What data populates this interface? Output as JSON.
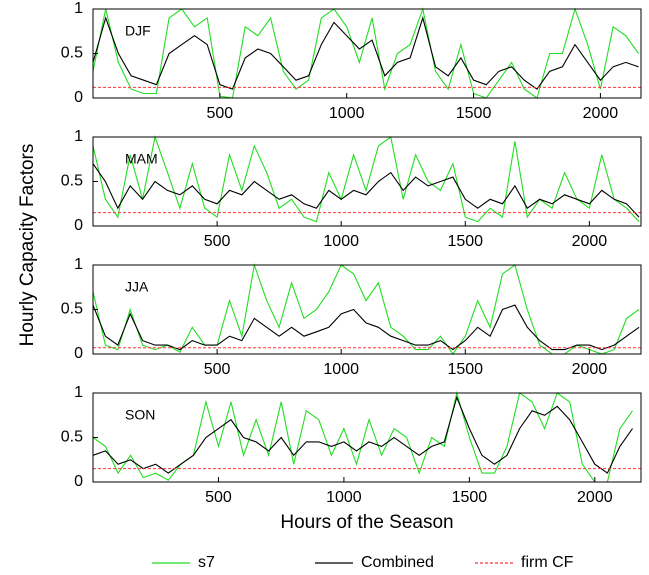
{
  "figure": {
    "xlabel": "Hours of the Season",
    "ylabel": "Hourly Capacity Factors"
  },
  "chart_data": [
    {
      "type": "line",
      "label": "DJF",
      "xlim": [
        0,
        2160
      ],
      "ylim": [
        0,
        1
      ],
      "xticks": [
        500,
        1000,
        1500,
        2000
      ],
      "yticks": [
        0,
        0.5,
        1
      ],
      "x": [
        0,
        50,
        100,
        150,
        200,
        250,
        300,
        350,
        400,
        450,
        500,
        550,
        600,
        650,
        700,
        750,
        800,
        850,
        900,
        950,
        1000,
        1050,
        1100,
        1150,
        1200,
        1250,
        1300,
        1350,
        1400,
        1450,
        1500,
        1550,
        1600,
        1650,
        1700,
        1750,
        1800,
        1850,
        1900,
        1950,
        2000,
        2050,
        2100,
        2150
      ],
      "series": [
        {
          "name": "s7",
          "color": "#22dd22",
          "values": [
            0.3,
            1,
            0.4,
            0.1,
            0.05,
            0.05,
            0.9,
            1,
            0.8,
            0.9,
            0.02,
            0.0,
            0.8,
            0.7,
            0.9,
            0.3,
            0.1,
            0.2,
            0.9,
            1,
            0.8,
            0.4,
            0.9,
            0.1,
            0.5,
            0.6,
            1,
            0.3,
            0.1,
            0.6,
            0.05,
            0.0,
            0.2,
            0.4,
            0.1,
            0.0,
            0.5,
            0.5,
            1,
            0.6,
            0.1,
            0.8,
            0.7,
            0.5
          ]
        },
        {
          "name": "Combined",
          "color": "#000000",
          "values": [
            0.4,
            0.9,
            0.5,
            0.25,
            0.2,
            0.15,
            0.5,
            0.6,
            0.7,
            0.6,
            0.15,
            0.1,
            0.45,
            0.55,
            0.5,
            0.35,
            0.2,
            0.25,
            0.6,
            0.85,
            0.7,
            0.55,
            0.65,
            0.25,
            0.4,
            0.45,
            0.9,
            0.35,
            0.25,
            0.45,
            0.2,
            0.15,
            0.3,
            0.35,
            0.2,
            0.1,
            0.3,
            0.35,
            0.6,
            0.4,
            0.2,
            0.35,
            0.4,
            0.35
          ]
        },
        {
          "name": "firm CF",
          "color": "#ff3333",
          "dashed": true,
          "value": 0.12
        }
      ]
    },
    {
      "type": "line",
      "label": "MAM",
      "xlim": [
        0,
        2208
      ],
      "ylim": [
        0,
        1
      ],
      "xticks": [
        500,
        1000,
        1500,
        2000
      ],
      "yticks": [
        0,
        0.5,
        1
      ],
      "x": [
        0,
        50,
        100,
        150,
        200,
        250,
        300,
        350,
        400,
        450,
        500,
        550,
        600,
        650,
        700,
        750,
        800,
        850,
        900,
        950,
        1000,
        1050,
        1100,
        1150,
        1200,
        1250,
        1300,
        1350,
        1400,
        1450,
        1500,
        1550,
        1600,
        1650,
        1700,
        1750,
        1800,
        1850,
        1900,
        1950,
        2000,
        2050,
        2100,
        2150,
        2200
      ],
      "series": [
        {
          "name": "s7",
          "color": "#22dd22",
          "values": [
            0.9,
            0.3,
            0.1,
            0.8,
            0.3,
            1,
            0.6,
            0.2,
            0.7,
            0.2,
            0.1,
            0.8,
            0.4,
            0.9,
            0.6,
            0.2,
            0.3,
            0.1,
            0.05,
            0.6,
            0.3,
            0.8,
            0.4,
            0.9,
            1,
            0.3,
            0.8,
            0.5,
            0.4,
            0.7,
            0.1,
            0.05,
            0.2,
            0.1,
            0.95,
            0.1,
            0.3,
            0.2,
            0.6,
            0.3,
            0.2,
            0.8,
            0.3,
            0.2,
            0.05
          ]
        },
        {
          "name": "Combined",
          "color": "#000000",
          "values": [
            0.7,
            0.5,
            0.2,
            0.45,
            0.3,
            0.5,
            0.4,
            0.35,
            0.45,
            0.3,
            0.25,
            0.4,
            0.35,
            0.5,
            0.4,
            0.3,
            0.35,
            0.25,
            0.2,
            0.4,
            0.3,
            0.4,
            0.35,
            0.5,
            0.6,
            0.4,
            0.55,
            0.45,
            0.5,
            0.55,
            0.3,
            0.2,
            0.3,
            0.25,
            0.45,
            0.2,
            0.3,
            0.25,
            0.35,
            0.3,
            0.25,
            0.4,
            0.3,
            0.25,
            0.1
          ]
        },
        {
          "name": "firm CF",
          "color": "#ff3333",
          "dashed": true,
          "value": 0.15
        }
      ]
    },
    {
      "type": "line",
      "label": "JJA",
      "xlim": [
        0,
        2208
      ],
      "ylim": [
        0,
        1
      ],
      "xticks": [
        500,
        1000,
        1500,
        2000
      ],
      "yticks": [
        0,
        0.5,
        1
      ],
      "x": [
        0,
        50,
        100,
        150,
        200,
        250,
        300,
        350,
        400,
        450,
        500,
        550,
        600,
        650,
        700,
        750,
        800,
        850,
        900,
        950,
        1000,
        1050,
        1100,
        1150,
        1200,
        1250,
        1300,
        1350,
        1400,
        1450,
        1500,
        1550,
        1600,
        1650,
        1700,
        1750,
        1800,
        1850,
        1900,
        1950,
        2000,
        2050,
        2100,
        2150,
        2200
      ],
      "series": [
        {
          "name": "s7",
          "color": "#22dd22",
          "values": [
            0.7,
            0.1,
            0.05,
            0.5,
            0.1,
            0.05,
            0.1,
            0.02,
            0.3,
            0.1,
            0.1,
            0.6,
            0.2,
            1,
            0.6,
            0.3,
            0.8,
            0.4,
            0.5,
            0.7,
            1,
            0.9,
            0.6,
            0.8,
            0.3,
            0.2,
            0.05,
            0.05,
            0.2,
            0.0,
            0.2,
            0.6,
            0.3,
            0.9,
            1,
            0.5,
            0.1,
            0.0,
            0.0,
            0.1,
            0.05,
            0.0,
            0.05,
            0.4,
            0.5
          ]
        },
        {
          "name": "Combined",
          "color": "#000000",
          "values": [
            0.55,
            0.2,
            0.1,
            0.45,
            0.15,
            0.1,
            0.1,
            0.05,
            0.15,
            0.1,
            0.1,
            0.2,
            0.15,
            0.4,
            0.3,
            0.2,
            0.3,
            0.2,
            0.25,
            0.3,
            0.45,
            0.5,
            0.35,
            0.3,
            0.2,
            0.15,
            0.1,
            0.1,
            0.15,
            0.05,
            0.15,
            0.3,
            0.2,
            0.5,
            0.55,
            0.3,
            0.15,
            0.05,
            0.05,
            0.1,
            0.1,
            0.05,
            0.1,
            0.2,
            0.3
          ]
        },
        {
          "name": "firm CF",
          "color": "#ff3333",
          "dashed": true,
          "value": 0.07
        }
      ]
    },
    {
      "type": "line",
      "label": "SON",
      "xlim": [
        0,
        2184
      ],
      "ylim": [
        0,
        1
      ],
      "xticks": [
        500,
        1000,
        1500,
        2000
      ],
      "yticks": [
        0,
        0.5,
        1
      ],
      "x": [
        0,
        50,
        100,
        150,
        200,
        250,
        300,
        350,
        400,
        450,
        500,
        550,
        600,
        650,
        700,
        750,
        800,
        850,
        900,
        950,
        1000,
        1050,
        1100,
        1150,
        1200,
        1250,
        1300,
        1350,
        1400,
        1450,
        1500,
        1550,
        1600,
        1650,
        1700,
        1750,
        1800,
        1850,
        1900,
        1950,
        2000,
        2050,
        2100,
        2150
      ],
      "series": [
        {
          "name": "s7",
          "color": "#22dd22",
          "values": [
            0.5,
            0.4,
            0.1,
            0.3,
            0.05,
            0.1,
            0.02,
            0.2,
            0.3,
            0.9,
            0.4,
            0.9,
            0.3,
            0.7,
            0.3,
            0.9,
            0.2,
            0.8,
            0.7,
            0.3,
            0.6,
            0.2,
            0.7,
            0.3,
            0.6,
            0.5,
            0.1,
            0.5,
            0.4,
            1,
            0.5,
            0.1,
            0.1,
            0.4,
            1,
            0.9,
            0.6,
            1,
            0.9,
            0.2,
            0.0,
            0.0,
            0.6,
            0.8
          ]
        },
        {
          "name": "Combined",
          "color": "#000000",
          "values": [
            0.3,
            0.35,
            0.2,
            0.25,
            0.15,
            0.2,
            0.1,
            0.2,
            0.3,
            0.5,
            0.6,
            0.7,
            0.5,
            0.45,
            0.35,
            0.5,
            0.3,
            0.45,
            0.45,
            0.4,
            0.45,
            0.35,
            0.45,
            0.4,
            0.5,
            0.4,
            0.3,
            0.4,
            0.45,
            0.95,
            0.6,
            0.3,
            0.2,
            0.3,
            0.6,
            0.8,
            0.75,
            0.85,
            0.7,
            0.45,
            0.2,
            0.1,
            0.4,
            0.6
          ]
        },
        {
          "name": "firm CF",
          "color": "#ff3333",
          "dashed": true,
          "value": 0.15
        }
      ]
    }
  ]
}
